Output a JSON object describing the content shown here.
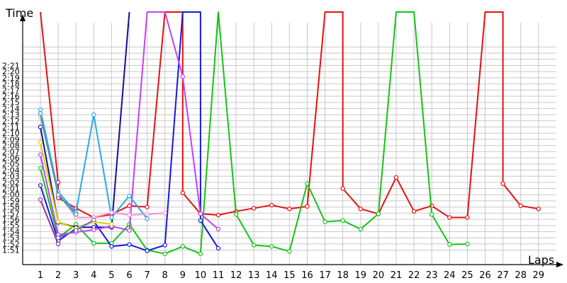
{
  "chart_data": {
    "type": "line",
    "xlabel": "Laps",
    "ylabel": "Time",
    "x_ticks": [
      1,
      2,
      3,
      4,
      5,
      6,
      7,
      8,
      9,
      10,
      11,
      12,
      13,
      14,
      15,
      16,
      17,
      18,
      19,
      20,
      21,
      22,
      23,
      24,
      25,
      26,
      27,
      28,
      29
    ],
    "y_ticks": [
      "1:51",
      "1:52",
      "1:53",
      "1:54",
      "1:55",
      "1:56",
      "1:57",
      "1:58",
      "1:59",
      "2:00",
      "2:01",
      "2:02",
      "2:03",
      "2:04",
      "2:05",
      "2:06",
      "2:07",
      "2:08",
      "2:09",
      "2:10",
      "2:11",
      "2:12",
      "2:13",
      "2:14",
      "2:15",
      "2:16",
      "2:17",
      "2:18",
      "2:19",
      "2:20",
      "2:21"
    ],
    "ylim_seconds": [
      108,
      144
    ],
    "grid": true,
    "series": [
      {
        "color": "#e81010",
        "points": [
          [
            1,
            200
          ],
          [
            2,
            122
          ],
          [
            2,
            119.5
          ],
          [
            3,
            117.8
          ],
          [
            4,
            116.3
          ],
          [
            5,
            116.8
          ],
          [
            6,
            118.2
          ],
          [
            7,
            118
          ],
          [
            8,
            200
          ],
          [
            9,
            200
          ],
          [
            9,
            120.3
          ],
          [
            10,
            116.9
          ],
          [
            11,
            116.7
          ],
          [
            12,
            117.3
          ],
          [
            13,
            117.8
          ],
          [
            14,
            118.3
          ],
          [
            15,
            117.7
          ],
          [
            16,
            118.1
          ],
          [
            17,
            200
          ],
          [
            18,
            200
          ],
          [
            18,
            121
          ],
          [
            19,
            117.7
          ],
          [
            20,
            116.9
          ],
          [
            21,
            122.8
          ],
          [
            22,
            117.3
          ],
          [
            23,
            118.2
          ],
          [
            24,
            116.3
          ],
          [
            25,
            116.3
          ],
          [
            26,
            200
          ],
          [
            27,
            200
          ],
          [
            27,
            121.8
          ],
          [
            28,
            118.2
          ],
          [
            29,
            117.7
          ]
        ]
      },
      {
        "color": "#14c414",
        "points": [
          [
            1,
            124.3
          ],
          [
            2,
            113
          ],
          [
            3,
            115.2
          ],
          [
            4,
            112.1
          ],
          [
            5,
            112.1
          ],
          [
            6,
            115.2
          ],
          [
            7,
            111
          ],
          [
            8,
            110.4
          ],
          [
            9,
            111.6
          ],
          [
            10,
            110.4
          ],
          [
            11,
            200
          ],
          [
            12,
            116.8
          ],
          [
            13,
            111.8
          ],
          [
            14,
            111.6
          ],
          [
            15,
            110.8
          ],
          [
            16,
            121.8
          ],
          [
            17,
            115.6
          ],
          [
            18,
            115.8
          ],
          [
            19,
            114.4
          ],
          [
            20,
            116.9
          ],
          [
            21,
            200
          ],
          [
            22,
            200
          ],
          [
            23,
            116.8
          ],
          [
            24,
            111.9
          ],
          [
            25,
            112
          ]
        ]
      },
      {
        "color": "#10109a",
        "points": [
          [
            1,
            131
          ],
          [
            2,
            115.5
          ],
          [
            3,
            114.7
          ],
          [
            4,
            114.7
          ],
          [
            5,
            114.7
          ],
          [
            6,
            200
          ]
        ]
      },
      {
        "color": "#1818dd",
        "points": [
          [
            1,
            121.5
          ],
          [
            2,
            112.5
          ],
          [
            3,
            114.5
          ],
          [
            4,
            115.7
          ],
          [
            5,
            111.6
          ],
          [
            6,
            111.9
          ],
          [
            7,
            110.9
          ],
          [
            8,
            111.8
          ],
          [
            9,
            200
          ],
          [
            10,
            200
          ],
          [
            10,
            115.8
          ],
          [
            11,
            111.3
          ]
        ]
      },
      {
        "color": "#c040ff",
        "points": [
          [
            1,
            126.5
          ],
          [
            2,
            113.5
          ],
          [
            3,
            113.9
          ],
          [
            4,
            114.3
          ],
          [
            5,
            114.9
          ],
          [
            6,
            114.2
          ],
          [
            7,
            200
          ],
          [
            8,
            200
          ],
          [
            9,
            139.2
          ],
          [
            10,
            116.9
          ],
          [
            11,
            114.4
          ]
        ]
      },
      {
        "color": "#2aa8f0",
        "points": [
          [
            1,
            133.8
          ],
          [
            2,
            120.5
          ],
          [
            3,
            117.1
          ],
          [
            4,
            133
          ],
          [
            5,
            116.3
          ],
          [
            6,
            119.8
          ],
          [
            7,
            116.1
          ]
        ]
      },
      {
        "color": "#ff90d0",
        "points": [
          [
            1,
            132.7
          ],
          [
            2,
            120.2
          ],
          [
            3,
            116.3
          ],
          [
            4,
            116.3
          ],
          [
            5,
            117.1
          ],
          [
            6,
            116.7
          ],
          [
            7,
            116.8
          ],
          [
            8,
            117
          ]
        ]
      },
      {
        "color": "#d4d400",
        "points": [
          [
            1,
            128.5
          ],
          [
            2,
            115.6
          ],
          [
            3,
            114.5
          ],
          [
            4,
            115.6
          ],
          [
            5,
            115.2
          ]
        ]
      },
      {
        "color": "#3a9ab5",
        "points": [
          [
            1,
            133.2
          ],
          [
            2,
            120
          ],
          [
            3,
            116.8
          ]
        ]
      },
      {
        "color": "#8a38a0",
        "points": [
          [
            1,
            119.2
          ],
          [
            2,
            112
          ]
        ]
      },
      {
        "color": "#8060c0",
        "points": [
          [
            2,
            113
          ],
          [
            3,
            114.2
          ],
          [
            4,
            115.9
          ]
        ]
      }
    ]
  }
}
